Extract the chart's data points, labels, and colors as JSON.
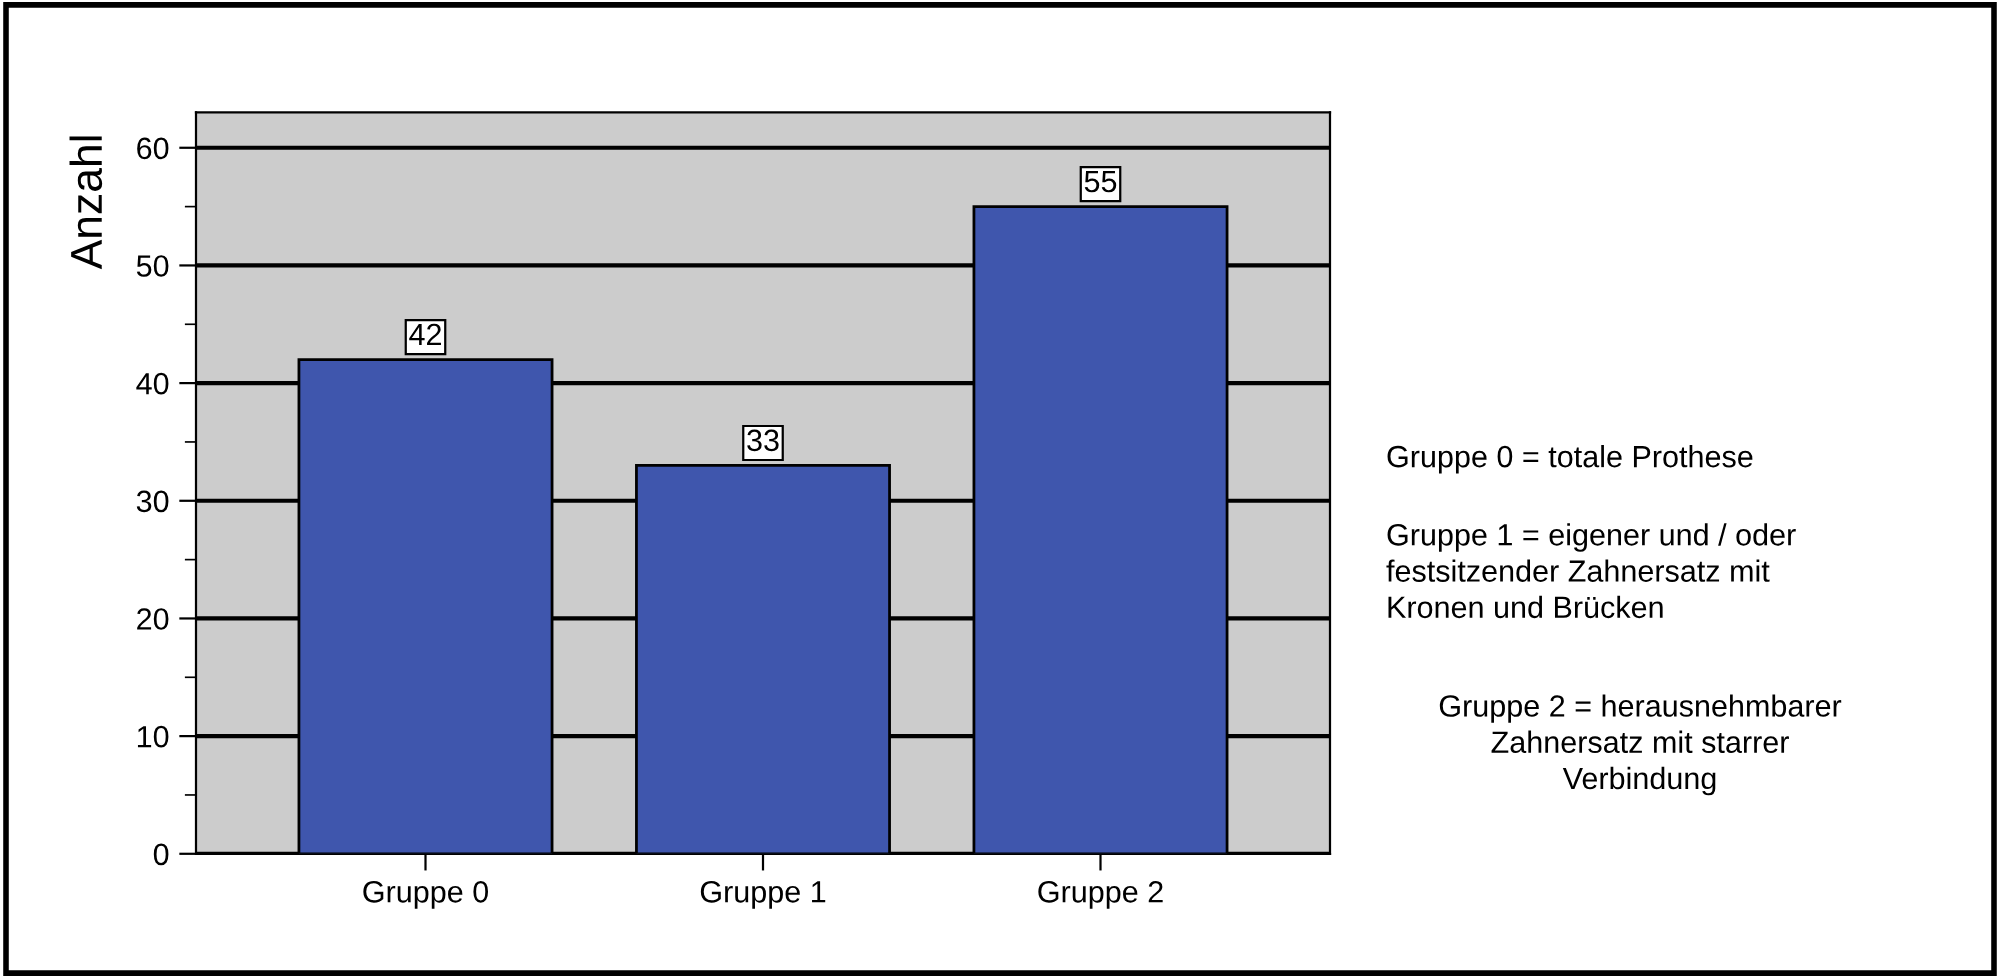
{
  "chart_data": {
    "type": "bar",
    "ylabel": "Anzahl",
    "categories": [
      "Gruppe 0",
      "Gruppe 1",
      "Gruppe 2"
    ],
    "values": [
      42,
      33,
      55
    ],
    "color": "#3f56ad",
    "ylim": [
      0,
      63
    ],
    "yticks": [
      0,
      10,
      20,
      30,
      40,
      50,
      60
    ],
    "grid": "y",
    "data_labels": true,
    "annotations": [
      "Gruppe 0 = totale Prothese",
      "Gruppe 1 = eigener und / oder\nfestsitzender Zahnersatz mit\nKronen und Brücken",
      "Gruppe 2 = herausnehmbarer\nZahnersatz mit starrer\nVerbindung"
    ]
  }
}
